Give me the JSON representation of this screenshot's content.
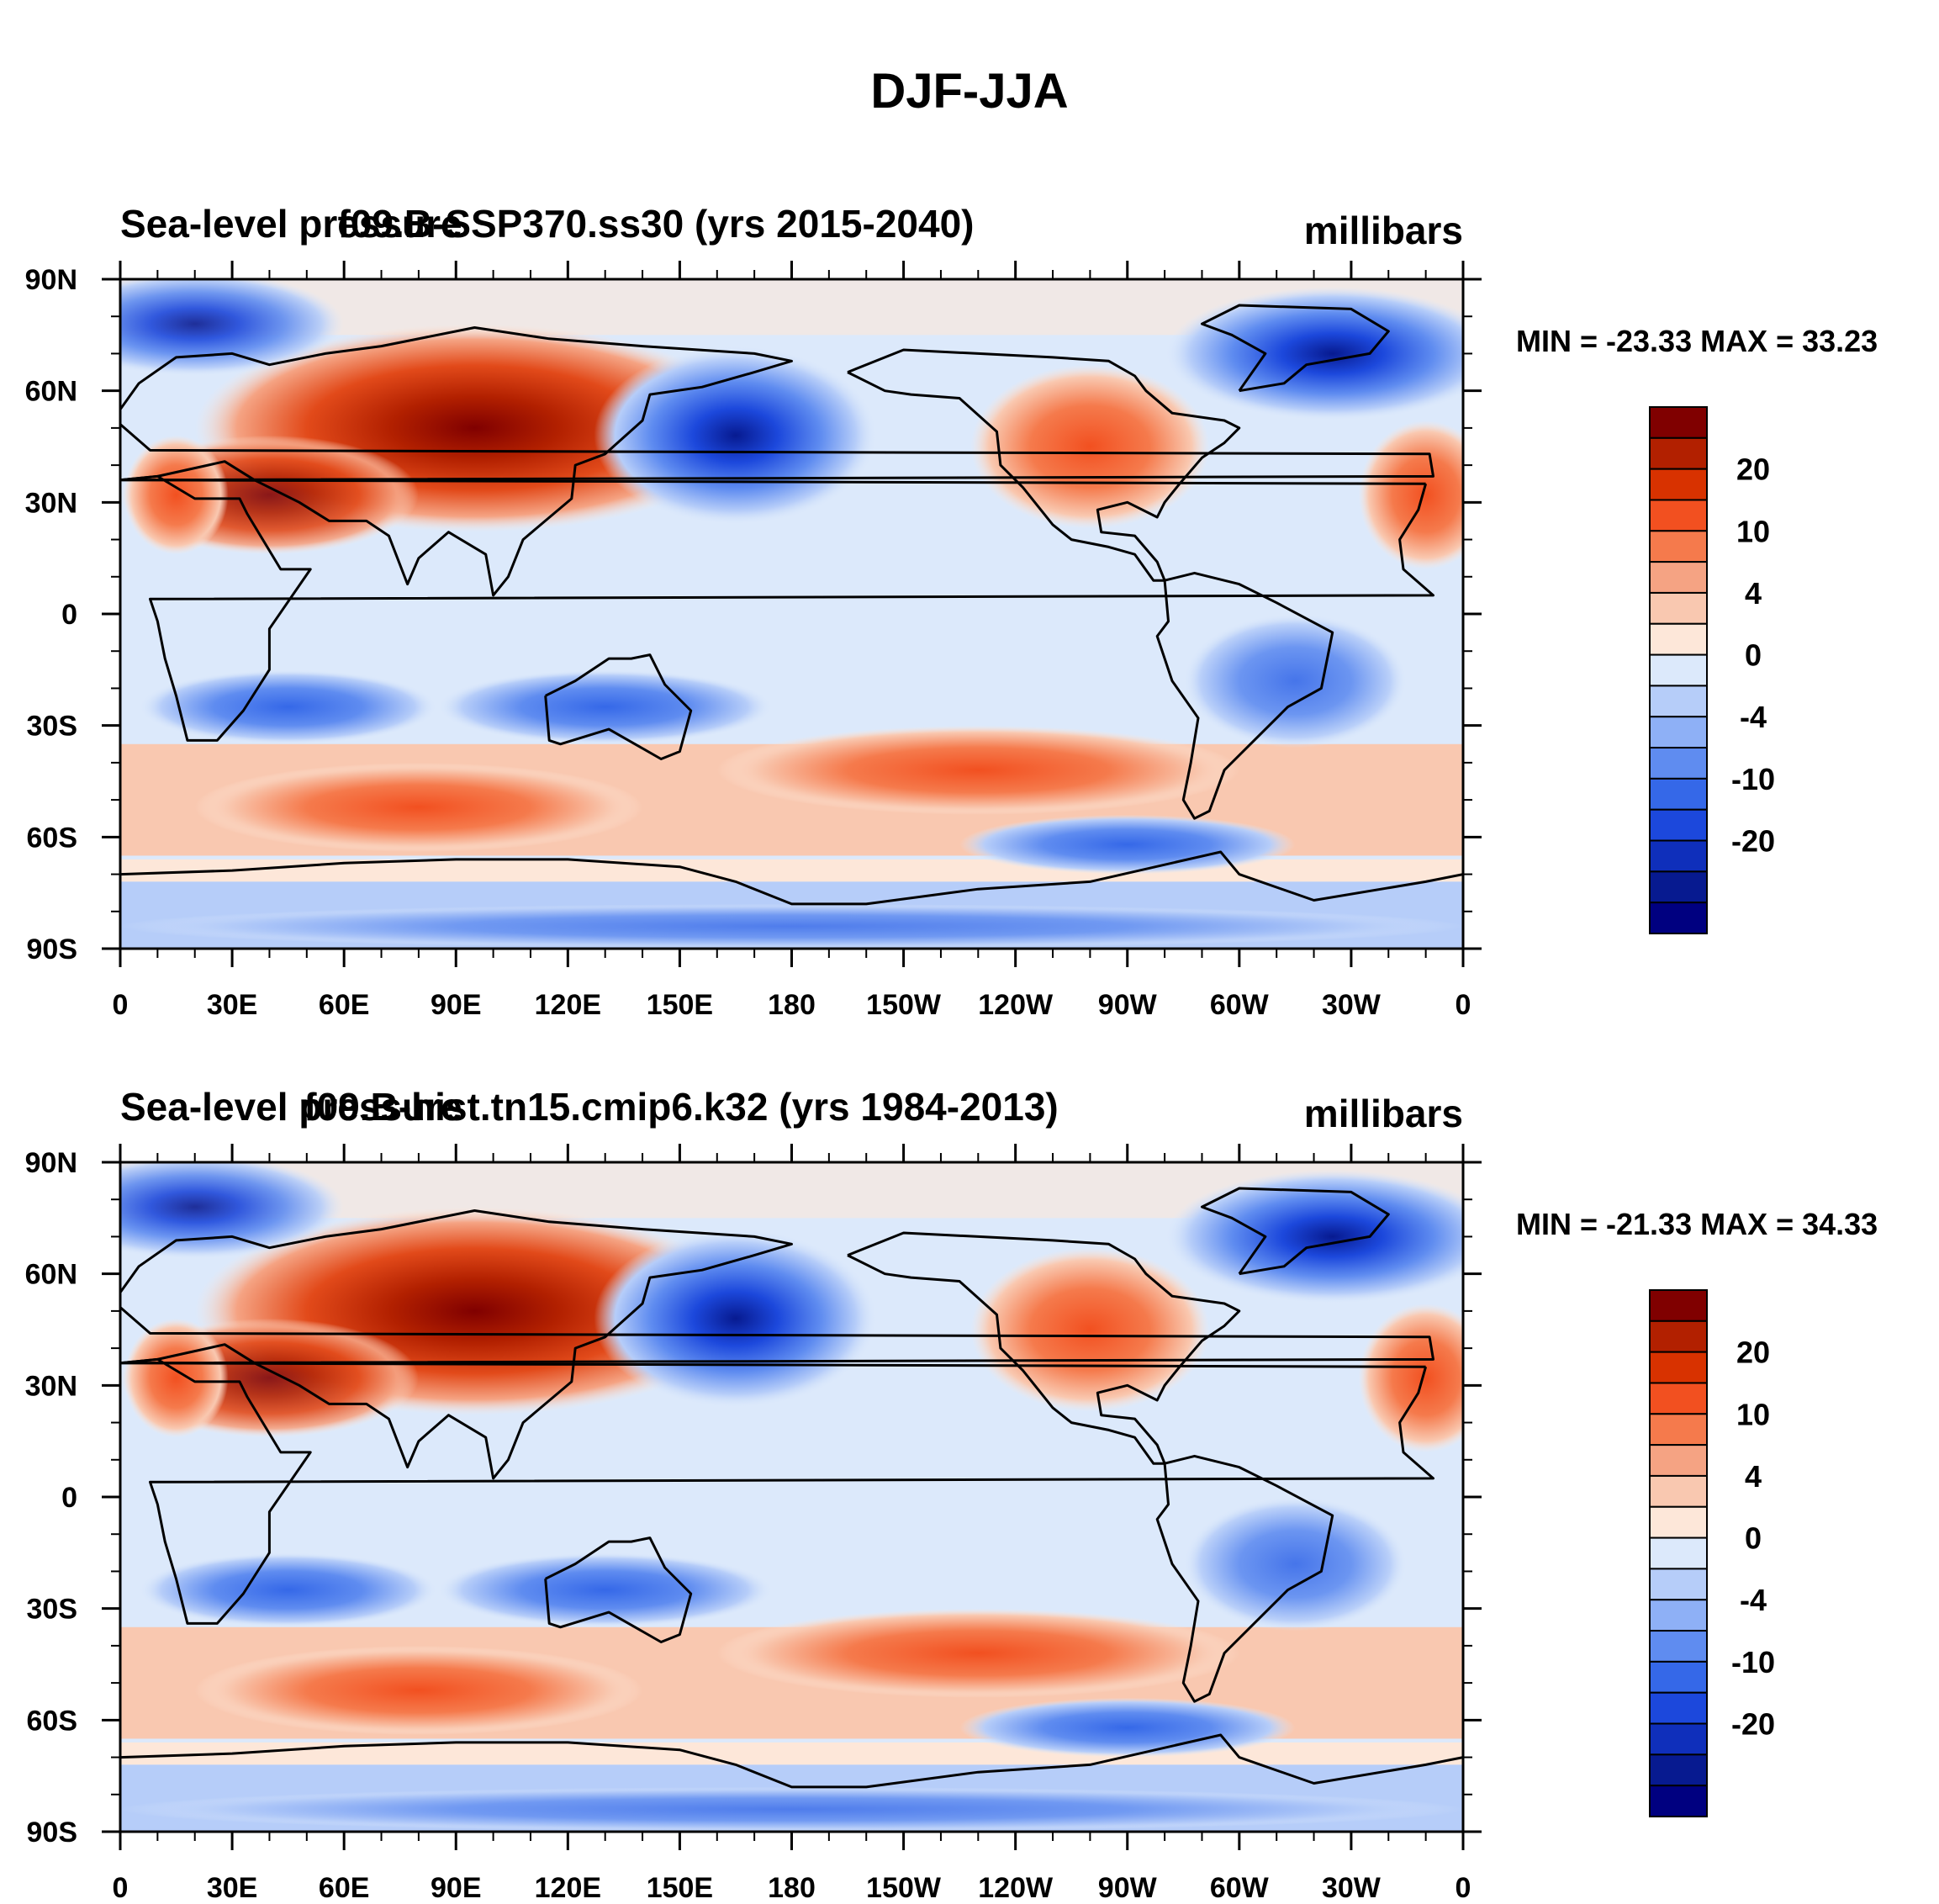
{
  "figure": {
    "title": "DJF-JJA"
  },
  "chart_data": [
    {
      "type": "heatmap",
      "left_title": "Sea-level pressure",
      "center_title": "f09.B-SSP370.ss30 (yrs 2015-2040)",
      "units": "millibars",
      "stats": "MIN = -23.33 MAX =  33.23",
      "x_ticks": [
        "0",
        "30E",
        "60E",
        "90E",
        "120E",
        "150E",
        "180",
        "150W",
        "120W",
        "90W",
        "60W",
        "30W",
        "0"
      ],
      "y_ticks": [
        "90N",
        "60N",
        "30N",
        "0",
        "30S",
        "60S",
        "90S"
      ],
      "xlim": [
        0,
        360
      ],
      "ylim": [
        -90,
        90
      ]
    },
    {
      "type": "heatmap",
      "left_title": "Sea-level pressure",
      "center_title": "f09.B-hist.tn15.cmip6.k32 (yrs 1984-2013)",
      "units": "millibars",
      "stats": "MIN = -21.33 MAX =  34.33",
      "x_ticks": [
        "0",
        "30E",
        "60E",
        "90E",
        "120E",
        "150E",
        "180",
        "150W",
        "120W",
        "90W",
        "60W",
        "30W",
        "0"
      ],
      "y_ticks": [
        "90N",
        "60N",
        "30N",
        "0",
        "30S",
        "60S",
        "90S"
      ],
      "xlim": [
        0,
        360
      ],
      "ylim": [
        -90,
        90
      ]
    }
  ],
  "colorbar": {
    "colors": [
      "#800000",
      "#b22000",
      "#d83200",
      "#f25020",
      "#f57a4c",
      "#f5a383",
      "#f9c8b0",
      "#fde7d9",
      "#dce9fb",
      "#b6cdf9",
      "#8eb0f6",
      "#5f8cf0",
      "#3568e8",
      "#1c48dc",
      "#0f2fbb",
      "#071a90",
      "#000080"
    ],
    "labels": [
      "20",
      "10",
      "4",
      "0",
      "-4",
      "-10",
      "-20"
    ]
  }
}
